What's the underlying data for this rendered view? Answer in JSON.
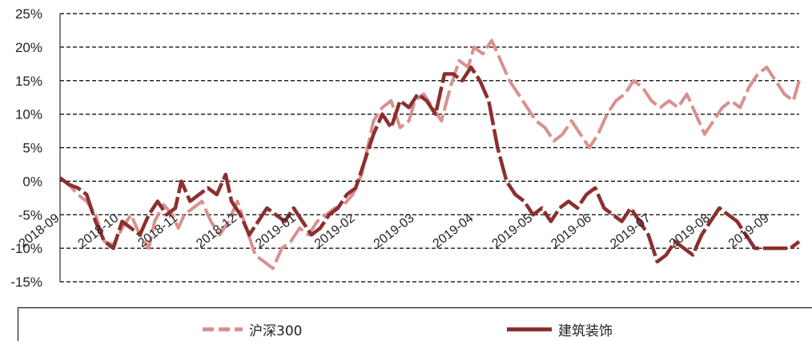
{
  "chart_data": {
    "type": "line",
    "title": "",
    "xlabel": "",
    "ylabel": "",
    "ylim": [
      -15,
      25
    ],
    "yticks": [
      -15,
      -10,
      -5,
      0,
      5,
      10,
      15,
      20,
      25
    ],
    "ytick_labels": [
      "-15%",
      "-10%",
      "-5%",
      "0%",
      "5%",
      "10%",
      "15%",
      "20%",
      "25%"
    ],
    "grid": "horizontal dashed",
    "legend_position": "bottom",
    "x_labels": [
      "2018-09",
      "2018-10",
      "2018-11",
      "2018-12",
      "2019-01",
      "2019-02",
      "2019-03",
      "2019-04",
      "2019-05",
      "2019-06",
      "2019-07",
      "2019-08",
      "2019-09"
    ],
    "x_label_positions": [
      0,
      1,
      2,
      3,
      4,
      5,
      6,
      7,
      8,
      9,
      10,
      11,
      12
    ],
    "x_range": [
      0,
      12.5
    ],
    "series": [
      {
        "name": "沪深300",
        "color": "#d9908f",
        "style": "dashed",
        "points": [
          [
            0,
            0.5
          ],
          [
            0.15,
            -0.5
          ],
          [
            0.3,
            -2
          ],
          [
            0.45,
            -3
          ],
          [
            0.6,
            -5
          ],
          [
            0.75,
            -9
          ],
          [
            0.9,
            -9.5
          ],
          [
            1.05,
            -7
          ],
          [
            1.2,
            -5
          ],
          [
            1.35,
            -8
          ],
          [
            1.5,
            -10
          ],
          [
            1.6,
            -6
          ],
          [
            1.75,
            -3.5
          ],
          [
            1.9,
            -5
          ],
          [
            2.0,
            -7
          ],
          [
            2.1,
            -5
          ],
          [
            2.25,
            -4
          ],
          [
            2.4,
            -3
          ],
          [
            2.55,
            -6
          ],
          [
            2.7,
            -8
          ],
          [
            2.85,
            -6
          ],
          [
            3.0,
            -3
          ],
          [
            3.15,
            -7
          ],
          [
            3.3,
            -11
          ],
          [
            3.45,
            -12
          ],
          [
            3.6,
            -13
          ],
          [
            3.75,
            -10
          ],
          [
            3.9,
            -9
          ],
          [
            4.05,
            -7
          ],
          [
            4.2,
            -8
          ],
          [
            4.35,
            -6
          ],
          [
            4.5,
            -5
          ],
          [
            4.65,
            -4
          ],
          [
            4.8,
            -3.5
          ],
          [
            4.95,
            -2
          ],
          [
            5.1,
            1
          ],
          [
            5.2,
            5
          ],
          [
            5.3,
            9
          ],
          [
            5.45,
            11
          ],
          [
            5.6,
            12
          ],
          [
            5.75,
            8
          ],
          [
            5.9,
            9
          ],
          [
            6.0,
            12
          ],
          [
            6.15,
            13
          ],
          [
            6.3,
            11
          ],
          [
            6.45,
            9
          ],
          [
            6.6,
            14
          ],
          [
            6.75,
            18
          ],
          [
            6.9,
            17
          ],
          [
            7.0,
            20
          ],
          [
            7.15,
            19
          ],
          [
            7.3,
            21
          ],
          [
            7.45,
            18
          ],
          [
            7.6,
            15
          ],
          [
            7.75,
            13
          ],
          [
            7.9,
            11
          ],
          [
            8.05,
            9
          ],
          [
            8.2,
            8
          ],
          [
            8.35,
            6
          ],
          [
            8.5,
            7
          ],
          [
            8.65,
            9
          ],
          [
            8.8,
            7
          ],
          [
            8.95,
            5
          ],
          [
            9.1,
            7
          ],
          [
            9.25,
            10
          ],
          [
            9.4,
            12
          ],
          [
            9.55,
            13
          ],
          [
            9.7,
            15
          ],
          [
            9.85,
            14
          ],
          [
            10.0,
            12
          ],
          [
            10.15,
            11
          ],
          [
            10.3,
            12
          ],
          [
            10.45,
            11
          ],
          [
            10.6,
            13
          ],
          [
            10.75,
            10
          ],
          [
            10.9,
            7
          ],
          [
            11.05,
            9
          ],
          [
            11.2,
            11
          ],
          [
            11.35,
            12
          ],
          [
            11.5,
            11
          ],
          [
            11.65,
            14
          ],
          [
            11.8,
            16
          ],
          [
            11.95,
            17
          ],
          [
            12.1,
            15
          ],
          [
            12.25,
            13
          ],
          [
            12.4,
            12
          ],
          [
            12.5,
            15
          ]
        ]
      },
      {
        "name": "建筑装饰",
        "color": "#8c2f2f",
        "style": "dashed",
        "points": [
          [
            0,
            0.5
          ],
          [
            0.15,
            -0.5
          ],
          [
            0.3,
            -1
          ],
          [
            0.45,
            -2
          ],
          [
            0.6,
            -6
          ],
          [
            0.75,
            -9
          ],
          [
            0.9,
            -10
          ],
          [
            1.05,
            -6
          ],
          [
            1.2,
            -7
          ],
          [
            1.35,
            -8
          ],
          [
            1.5,
            -5
          ],
          [
            1.65,
            -3
          ],
          [
            1.8,
            -5
          ],
          [
            1.95,
            -4
          ],
          [
            2.05,
            0
          ],
          [
            2.2,
            -3
          ],
          [
            2.35,
            -2
          ],
          [
            2.5,
            -1
          ],
          [
            2.65,
            -2
          ],
          [
            2.8,
            1
          ],
          [
            2.9,
            -3
          ],
          [
            3.05,
            -5
          ],
          [
            3.2,
            -8
          ],
          [
            3.35,
            -6
          ],
          [
            3.5,
            -4
          ],
          [
            3.65,
            -5
          ],
          [
            3.8,
            -6
          ],
          [
            3.95,
            -4
          ],
          [
            4.1,
            -6
          ],
          [
            4.25,
            -8
          ],
          [
            4.4,
            -7
          ],
          [
            4.55,
            -5
          ],
          [
            4.7,
            -4
          ],
          [
            4.85,
            -2
          ],
          [
            5.0,
            -1
          ],
          [
            5.15,
            3
          ],
          [
            5.3,
            7
          ],
          [
            5.45,
            10
          ],
          [
            5.6,
            8
          ],
          [
            5.75,
            12
          ],
          [
            5.9,
            11
          ],
          [
            6.05,
            13
          ],
          [
            6.2,
            12
          ],
          [
            6.35,
            10
          ],
          [
            6.5,
            16
          ],
          [
            6.65,
            16
          ],
          [
            6.8,
            15
          ],
          [
            6.95,
            17
          ],
          [
            7.1,
            15
          ],
          [
            7.25,
            12
          ],
          [
            7.4,
            5
          ],
          [
            7.55,
            0
          ],
          [
            7.7,
            -2
          ],
          [
            7.85,
            -3
          ],
          [
            8.0,
            -5
          ],
          [
            8.15,
            -4
          ],
          [
            8.3,
            -6
          ],
          [
            8.45,
            -4
          ],
          [
            8.6,
            -3
          ],
          [
            8.75,
            -4
          ],
          [
            8.9,
            -2
          ],
          [
            9.05,
            -1
          ],
          [
            9.2,
            -4
          ],
          [
            9.35,
            -5
          ],
          [
            9.5,
            -6
          ],
          [
            9.65,
            -4
          ],
          [
            9.8,
            -6
          ],
          [
            9.95,
            -8
          ],
          [
            10.1,
            -12
          ],
          [
            10.25,
            -11
          ],
          [
            10.4,
            -9
          ],
          [
            10.55,
            -10
          ],
          [
            10.7,
            -11
          ],
          [
            10.85,
            -8
          ],
          [
            11.0,
            -6
          ],
          [
            11.15,
            -4
          ],
          [
            11.3,
            -5
          ],
          [
            11.45,
            -6
          ],
          [
            11.6,
            -8
          ],
          [
            11.75,
            -10
          ],
          [
            11.9,
            -10
          ],
          [
            12.05,
            -10
          ],
          [
            12.2,
            -10
          ],
          [
            12.35,
            -10
          ],
          [
            12.5,
            -9
          ]
        ]
      }
    ]
  },
  "legend": {
    "items": [
      {
        "label": "沪深300",
        "color": "#d9908f"
      },
      {
        "label": "建筑装饰",
        "color": "#8c2f2f"
      }
    ]
  }
}
